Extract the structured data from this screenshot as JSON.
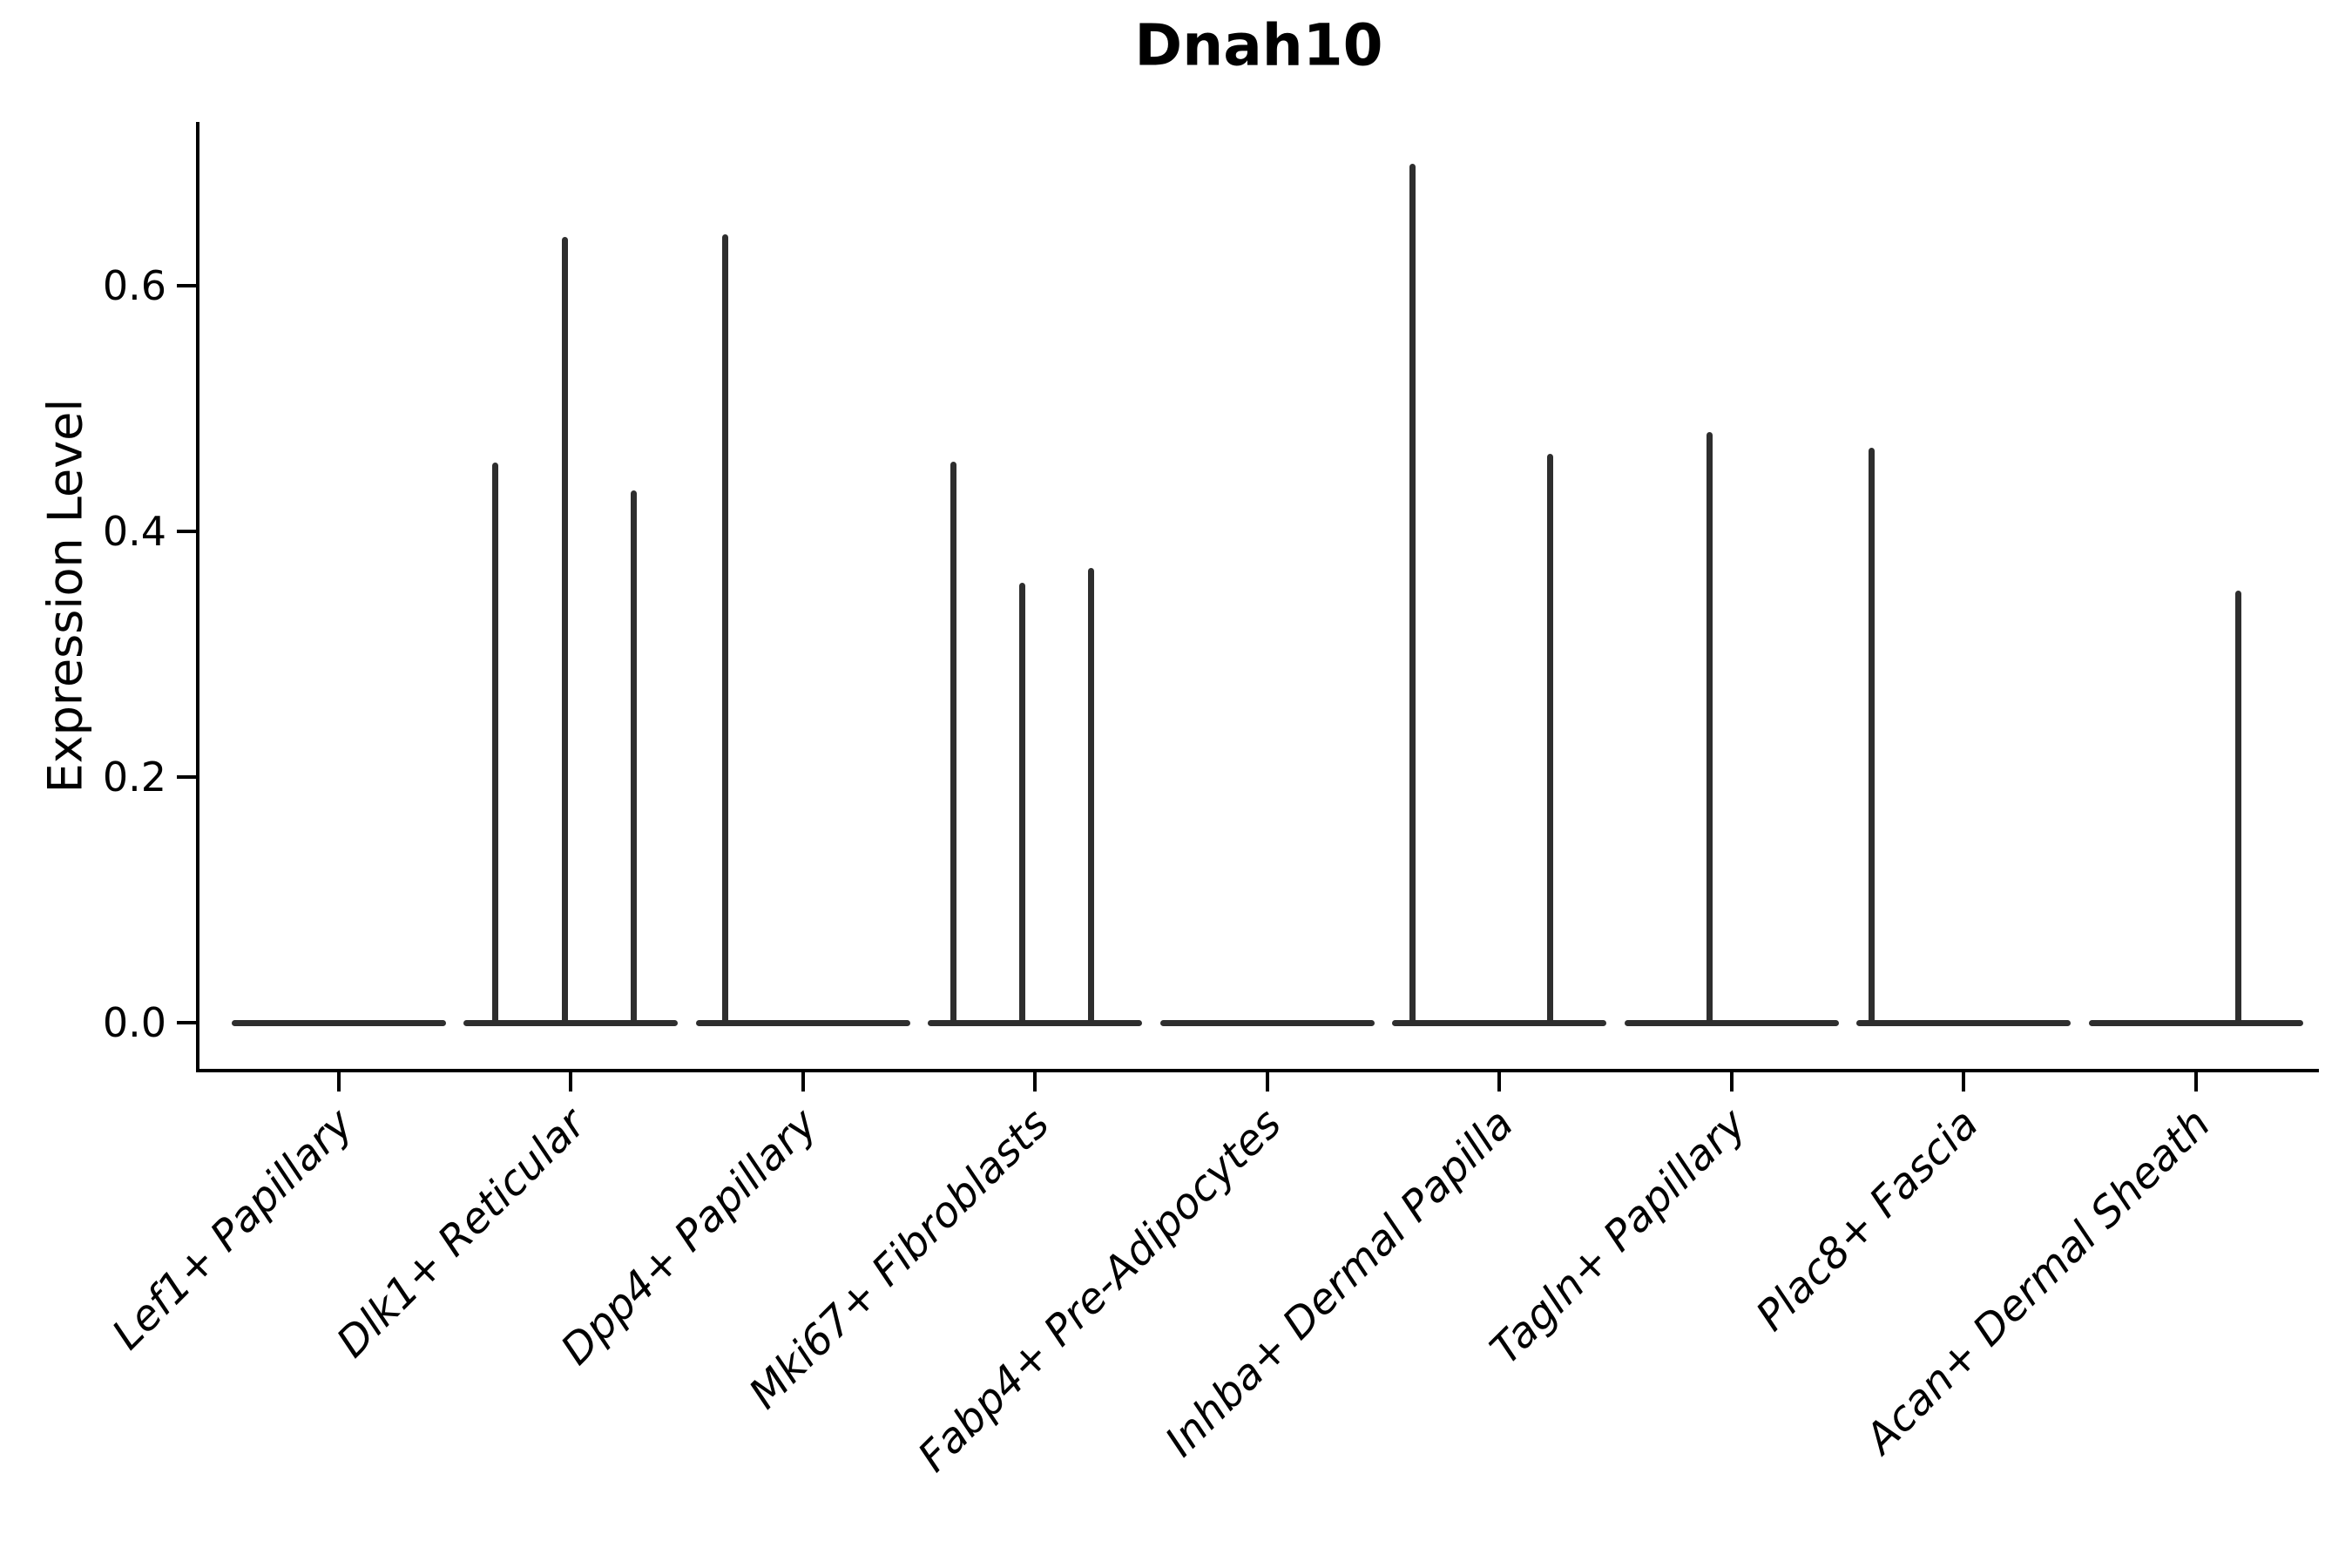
{
  "title": "Dnah10",
  "axes": {
    "y_label": "Expression Level",
    "y_ticks": [
      {
        "label": "0.0",
        "value": 0.0
      },
      {
        "label": "0.2",
        "value": 0.2
      },
      {
        "label": "0.4",
        "value": 0.4
      },
      {
        "label": "0.6",
        "value": 0.6
      }
    ]
  },
  "chart_data": {
    "type": "violin",
    "title": "Dnah10",
    "xlabel": "",
    "ylabel": "Expression Level",
    "ylim": [
      -0.04,
      0.73
    ],
    "grid": false,
    "legend": null,
    "categories": [
      "Lef1+ Papillary",
      "Dlk1+ Reticular",
      "Dpp4+ Papillary",
      "Mki67+ Fibroblasts",
      "Fabp4+ Pre-Adipocytes",
      "Inhba+ Dermal Papilla",
      "Tagln+ Papillary",
      "Plac8+ Fascia",
      "Acan+ Dermal Sheath"
    ],
    "violins": [
      {
        "category": "Lef1+ Papillary",
        "baseline_value": 0,
        "spikes": []
      },
      {
        "category": "Dlk1+ Reticular",
        "baseline_value": 0,
        "spikes": [
          {
            "dx": -87,
            "value": 0.456
          },
          {
            "dx": -7,
            "value": 0.64
          },
          {
            "dx": 72,
            "value": 0.433
          }
        ]
      },
      {
        "category": "Dpp4+ Papillary",
        "baseline_value": 0,
        "spikes": [
          {
            "dx": -89,
            "value": 0.642
          }
        ]
      },
      {
        "category": "Mki67+ Fibroblasts",
        "baseline_value": 0,
        "spikes": [
          {
            "dx": -94,
            "value": 0.457
          },
          {
            "dx": -15,
            "value": 0.358
          },
          {
            "dx": 64,
            "value": 0.37
          }
        ]
      },
      {
        "category": "Fabp4+ Pre-Adipocytes",
        "baseline_value": 0,
        "spikes": []
      },
      {
        "category": "Inhba+ Dermal Papilla",
        "baseline_value": 0,
        "spikes": [
          {
            "dx": -100,
            "value": 0.699
          },
          {
            "dx": 58,
            "value": 0.463
          }
        ]
      },
      {
        "category": "Tagln+ Papillary",
        "baseline_value": 0,
        "spikes": [
          {
            "dx": -25,
            "value": 0.481
          }
        ]
      },
      {
        "category": "Plac8+ Fascia",
        "baseline_value": 0,
        "spikes": [
          {
            "dx": -106,
            "value": 0.468
          }
        ]
      },
      {
        "category": "Acan+ Dermal Sheath",
        "baseline_value": 0,
        "spikes": [
          {
            "dx": 49,
            "value": 0.352
          }
        ]
      }
    ]
  },
  "colors": {
    "violin": "#2e2e2e",
    "axis": "#000000",
    "text": "#000000",
    "background": "#ffffff"
  }
}
